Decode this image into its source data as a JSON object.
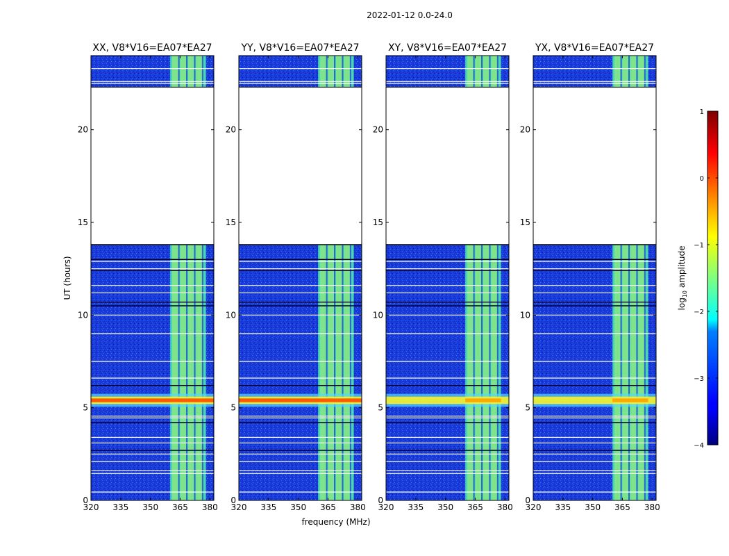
{
  "figure": {
    "suptitle": "2022-01-12 0.0-24.0",
    "xlabel": "frequency (MHz)",
    "ylabel": "UT (hours)"
  },
  "chart_data": {
    "type": "heatmap",
    "title": "2022-01-12 0.0-24.0",
    "xlabel": "frequency (MHz)",
    "ylabel": "UT (hours)",
    "xlim": [
      320,
      382
    ],
    "ylim": [
      0,
      24
    ],
    "xticks": [
      320,
      335,
      350,
      365,
      380
    ],
    "yticks": [
      0,
      5,
      10,
      15,
      20
    ],
    "colorbar": {
      "label": "log10 amplitude",
      "label_main": "log",
      "label_sub": "10",
      "label_rest": " amplitude",
      "colormap": "jet",
      "range": [
        -4,
        1
      ],
      "ticks": [
        -4,
        -3,
        -2,
        -1,
        0,
        1
      ],
      "tick_labels": [
        "−4",
        "−3",
        "−2",
        "−1",
        "0",
        "1"
      ]
    },
    "panels": [
      {
        "title": "XX, V8*V16=EA07*EA27"
      },
      {
        "title": "YY, V8*V16=EA07*EA27"
      },
      {
        "title": "XY, V8*V16=EA07*EA27"
      },
      {
        "title": "YX, V8*V16=EA07*EA27"
      }
    ],
    "no_data_intervals_hours": [
      [
        13.8,
        22.3
      ]
    ],
    "rfi_band_mhz": [
      360,
      378
    ]
  }
}
